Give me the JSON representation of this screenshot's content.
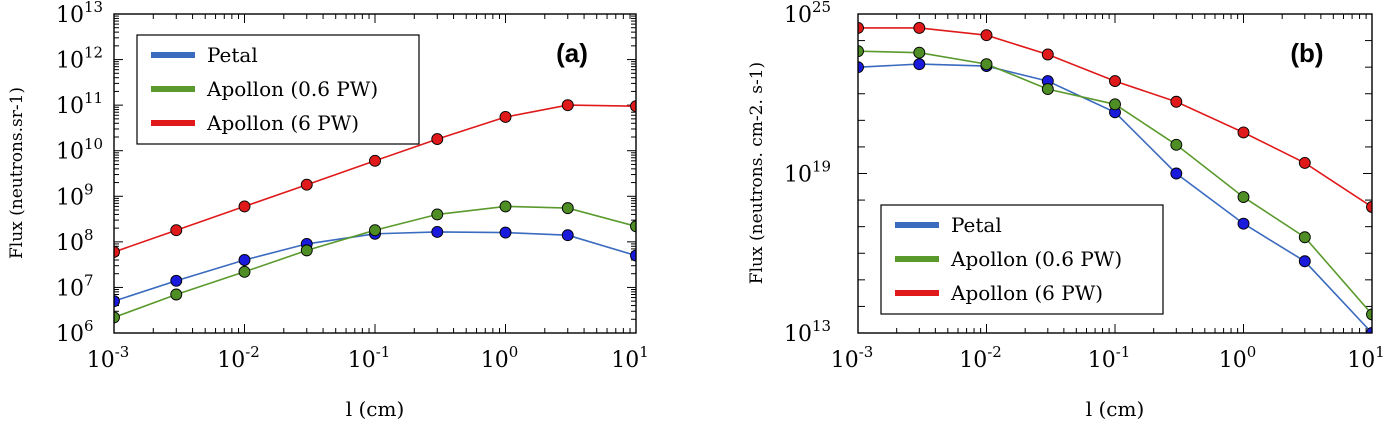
{
  "chart_data": [
    {
      "type": "line",
      "panel": "(a)",
      "xscale": "log",
      "yscale": "log",
      "xlabel": "l (cm)",
      "ylabel": "Flux (neutrons.sr-1)",
      "xlim": [
        0.001,
        10
      ],
      "ylim": [
        1000000.0,
        10000000000000.0
      ],
      "xticks": [
        0.001,
        0.01,
        0.1,
        1,
        10
      ],
      "xtick_labels": [
        {
          "base": "10",
          "exp": "-3"
        },
        {
          "base": "10",
          "exp": "-2"
        },
        {
          "base": "10",
          "exp": "-1"
        },
        {
          "base": "10",
          "exp": "0"
        },
        {
          "base": "10",
          "exp": "1"
        }
      ],
      "yticks": [
        1000000.0,
        10000000.0,
        100000000.0,
        1000000000.0,
        10000000000.0,
        100000000000.0,
        1000000000000.0,
        10000000000000.0
      ],
      "ytick_labels": [
        {
          "base": "10",
          "exp": "6"
        },
        {
          "base": "10",
          "exp": "7"
        },
        {
          "base": "10",
          "exp": "8"
        },
        {
          "base": "10",
          "exp": "9"
        },
        {
          "base": "10",
          "exp": "10"
        },
        {
          "base": "10",
          "exp": "11"
        },
        {
          "base": "10",
          "exp": "12"
        },
        {
          "base": "10",
          "exp": "13"
        }
      ],
      "grid": false,
      "legend_position": "top-left",
      "x": [
        0.001,
        0.003,
        0.01,
        0.03,
        0.1,
        0.3,
        1,
        3,
        10
      ],
      "series": [
        {
          "name": "Petal",
          "color": "#3a6bbf",
          "marker_color": "#1a1adc",
          "values": [
            5000000.0,
            14000000.0,
            40000000.0,
            90000000.0,
            150000000.0,
            165000000.0,
            160000000.0,
            140000000.0,
            50000000.0
          ]
        },
        {
          "name": "Apollon (0.6 PW)",
          "color": "#5a9a2c",
          "marker_color": "#4e8e24",
          "values": [
            2200000.0,
            7000000.0,
            22000000.0,
            65000000.0,
            180000000.0,
            400000000.0,
            600000000.0,
            550000000.0,
            220000000.0
          ]
        },
        {
          "name": "Apollon (6 PW)",
          "color": "#e01a1a",
          "marker_color": "#e01a1a",
          "values": [
            60000000.0,
            180000000.0,
            600000000.0,
            1800000000.0,
            6000000000.0,
            18000000000.0,
            55000000000.0,
            100000000000.0,
            95000000000.0
          ]
        }
      ]
    },
    {
      "type": "line",
      "panel": "(b)",
      "xscale": "log",
      "yscale": "log",
      "xlabel": "l (cm)",
      "ylabel": "Flux (neutrons. cm-2. s-1)",
      "xlim": [
        0.001,
        10
      ],
      "ylim": [
        10000000000000.0,
        1e+25
      ],
      "xticks": [
        0.001,
        0.01,
        0.1,
        1,
        10
      ],
      "xtick_labels": [
        {
          "base": "10",
          "exp": "-3"
        },
        {
          "base": "10",
          "exp": "-2"
        },
        {
          "base": "10",
          "exp": "-1"
        },
        {
          "base": "10",
          "exp": "0"
        },
        {
          "base": "10",
          "exp": "1"
        }
      ],
      "yticks": [
        10000000000000.0,
        1e+19,
        1e+25
      ],
      "ytick_labels": [
        {
          "base": "10",
          "exp": "13"
        },
        {
          "base": "10",
          "exp": "19"
        },
        {
          "base": "10",
          "exp": "25"
        }
      ],
      "grid": false,
      "legend_position": "bottom-left",
      "x": [
        0.001,
        0.003,
        0.01,
        0.03,
        0.1,
        0.3,
        1,
        3,
        10
      ],
      "series": [
        {
          "name": "Petal",
          "color": "#3a6bbf",
          "marker_color": "#1a1adc",
          "values": [
            1e+23,
            1.3e+23,
            1.1e+23,
            3e+22,
            2e+21,
            1e+19,
            1.3e+17,
            5000000000000000.0,
            10000000000000.0
          ]
        },
        {
          "name": "Apollon (0.6 PW)",
          "color": "#5a9a2c",
          "marker_color": "#4e8e24",
          "values": [
            4e+23,
            3.5e+23,
            1.3e+23,
            1.5e+22,
            4e+21,
            1.2e+20,
            1.3e+18,
            4e+16,
            50000000000000.0
          ]
        },
        {
          "name": "Apollon (6 PW)",
          "color": "#e01a1a",
          "marker_color": "#e01a1a",
          "values": [
            3e+24,
            3e+24,
            1.6e+24,
            3e+23,
            3e+22,
            5e+21,
            3.5e+20,
            2.5e+19,
            5.5e+17
          ]
        }
      ]
    }
  ]
}
